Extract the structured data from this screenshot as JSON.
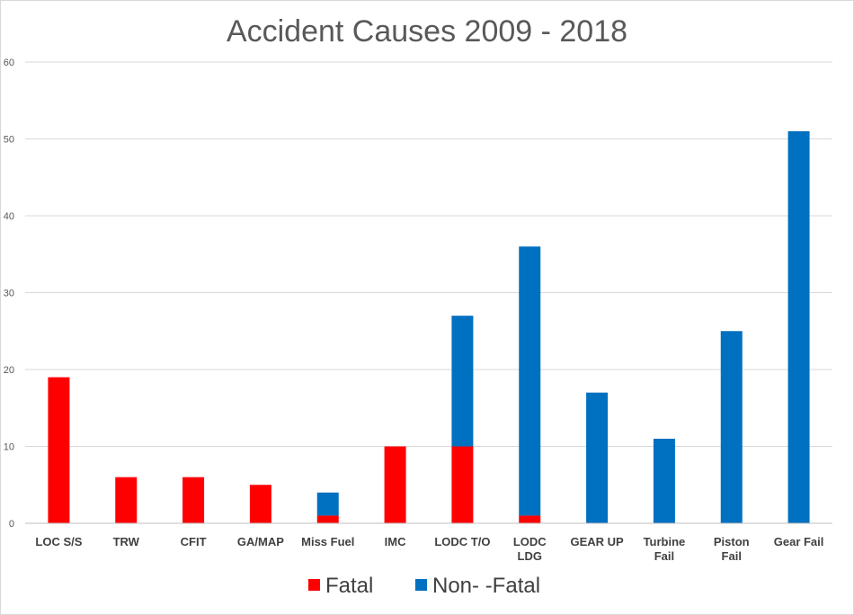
{
  "chart_data": {
    "type": "bar",
    "stacked": true,
    "title": "Accident Causes 2009 - 2018",
    "xlabel": "",
    "ylabel": "",
    "ylim": [
      0,
      60
    ],
    "yticks": [
      0,
      10,
      20,
      30,
      40,
      50,
      60
    ],
    "grid": true,
    "legend_position": "bottom",
    "categories": [
      [
        "LOC S/S"
      ],
      [
        "TRW"
      ],
      [
        "CFIT"
      ],
      [
        "GA/MAP"
      ],
      [
        "Miss Fuel"
      ],
      [
        "IMC"
      ],
      [
        "LODC T/O"
      ],
      [
        "LODC",
        "LDG"
      ],
      [
        "GEAR UP"
      ],
      [
        "Turbine",
        "Fail"
      ],
      [
        "Piston",
        "Fail"
      ],
      [
        "Gear Fail"
      ]
    ],
    "series": [
      {
        "name": "Fatal",
        "color": "#ff0000",
        "values": [
          19,
          6,
          6,
          5,
          1,
          10,
          10,
          1,
          0,
          0,
          0,
          0
        ]
      },
      {
        "name": "Non- -Fatal",
        "color": "#0070c0",
        "values": [
          0,
          0,
          0,
          0,
          3,
          0,
          17,
          35,
          17,
          11,
          25,
          51
        ]
      }
    ]
  }
}
